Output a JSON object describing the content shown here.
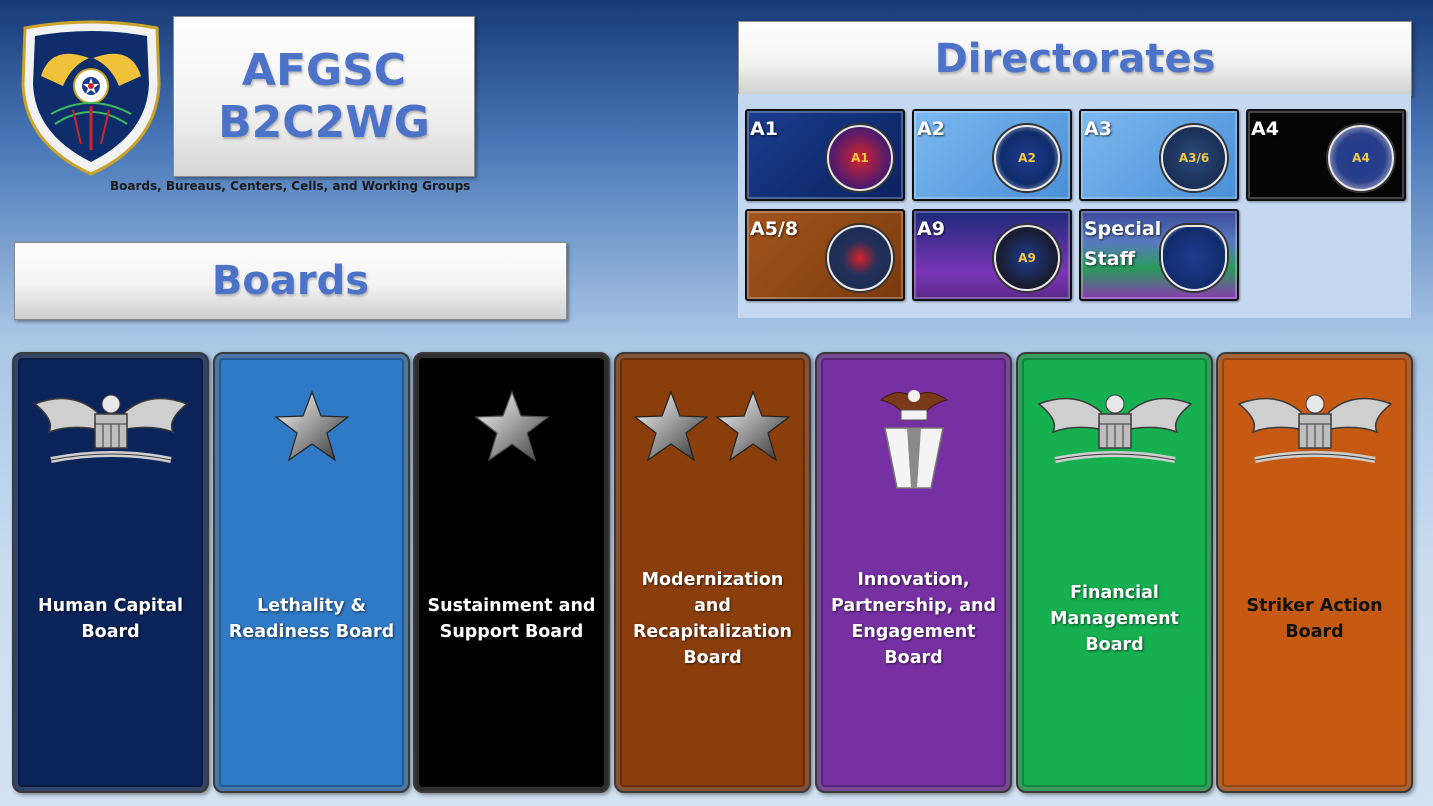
{
  "header": {
    "title_line1": "AFGSC",
    "title_line2": "B2C2WG",
    "subtitle": "Boards, Bureaus, Centers, Cells, and Working Groups"
  },
  "boards_banner": "Boards",
  "directorates_banner": "Directorates",
  "directorates": [
    {
      "label": "A1",
      "seal_text": "A1",
      "bg": "#0c2a6e"
    },
    {
      "label": "A2",
      "seal_text": "A2",
      "bg": "#5fa2e6"
    },
    {
      "label": "A3",
      "seal_text": "A3/6",
      "bg": "#5fa2e6"
    },
    {
      "label": "A4",
      "seal_text": "A4",
      "bg": "#050505"
    },
    {
      "label": "A5/8",
      "seal_text": "",
      "bg": "#8a4513"
    },
    {
      "label": "A9",
      "seal_text": "A9",
      "bg": "#6d2fa3"
    },
    {
      "label": "Special\nStaff",
      "seal_text": "",
      "bg": "#3d4a8a"
    }
  ],
  "boards": [
    {
      "label": "Human Capital Board",
      "insignia": "eagle-icon",
      "bg": "#0b2459",
      "text_color": "#ffffff"
    },
    {
      "label": "Lethality & Readiness Board",
      "insignia": "star-icon",
      "bg": "#2f79c5",
      "text_color": "#ffffff"
    },
    {
      "label": "Sustainment and Support Board",
      "insignia": "star-icon",
      "bg": "#000000",
      "text_color": "#ffffff"
    },
    {
      "label": "Modernization and Recapitalization Board",
      "insignia": "two-star-icon",
      "bg": "#8a3e0c",
      "text_color": "#ffffff"
    },
    {
      "label": "Innovation, Partnership, and Engagement Board",
      "insignia": "senior-executive-icon",
      "bg": "#7630a2",
      "text_color": "#ffffff"
    },
    {
      "label": "Financial Management Board",
      "insignia": "eagle-icon",
      "bg": "#16b050",
      "text_color": "#ffffff"
    },
    {
      "label": "Striker Action Board",
      "insignia": "eagle-icon",
      "bg": "#c65a12",
      "text_color": "#111111"
    }
  ]
}
